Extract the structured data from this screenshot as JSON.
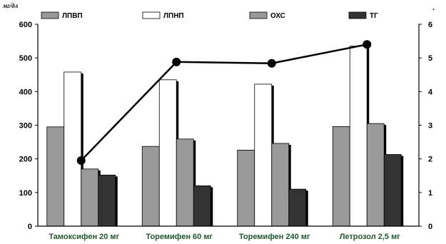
{
  "chart_data": {
    "type": "bar",
    "ylabel": "мг/дл",
    "ylim": [
      0,
      600
    ],
    "yticks": [
      "0",
      "100",
      "200",
      "300",
      "400",
      "500",
      "600"
    ],
    "y2lim": [
      0,
      6
    ],
    "y2ticks": [
      "0",
      "1",
      "2",
      "3",
      "4",
      "5",
      "6"
    ],
    "y2label": ".",
    "grid": false,
    "legend": "top",
    "categories": [
      "Тамоксифен 20 мг",
      "Торемифен 60 мг",
      "Торемифен 240 мг",
      "Летрозол 2,5 мг"
    ],
    "series": [
      {
        "name": "ЛПВП",
        "values": [
          295,
          237,
          226,
          296
        ],
        "color": "#999999"
      },
      {
        "name": "ЛПНП",
        "values": [
          458,
          435,
          422,
          535
        ],
        "color": "#ffffff"
      },
      {
        "name": "ОХС",
        "values": [
          170,
          259,
          246,
          305
        ],
        "color": "#999999"
      },
      {
        "name": "ТГ",
        "values": [
          152,
          120,
          110,
          213
        ],
        "color": "#333333"
      }
    ],
    "line_series": {
      "axis": "right",
      "values": [
        1.95,
        4.88,
        4.84,
        5.4
      ],
      "color": "#000000"
    }
  }
}
